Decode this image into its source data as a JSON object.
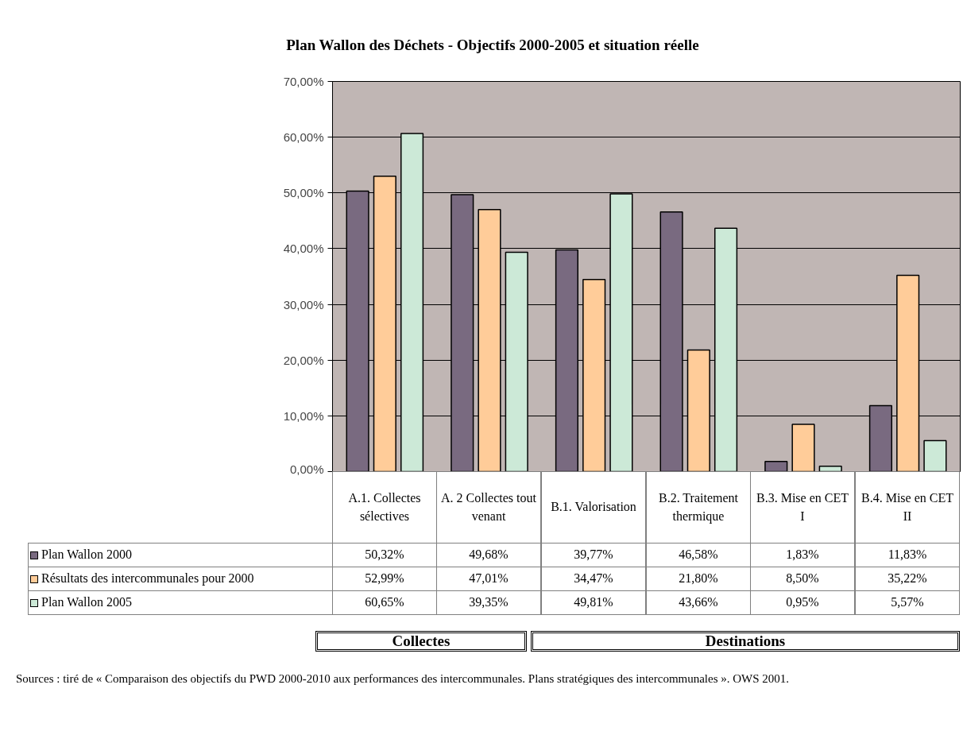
{
  "chart_data": {
    "type": "bar",
    "title": "Plan Wallon des Déchets - Objectifs 2000-2005 et situation réelle",
    "categories": [
      "A.1. Collectes sélectives",
      "A. 2 Collectes tout venant",
      "B.1. Valorisation",
      "B.2. Traitement thermique",
      "B.3. Mise en CET I",
      "B.4. Mise en CET II"
    ],
    "series": [
      {
        "name": "Plan Wallon 2000",
        "color": "#796a80",
        "values": [
          50.32,
          49.68,
          39.77,
          46.58,
          1.83,
          11.83
        ],
        "value_labels": [
          "50,32%",
          "49,68%",
          "39,77%",
          "46,58%",
          "1,83%",
          "11,83%"
        ]
      },
      {
        "name": "Résultats des intercommunales pour 2000",
        "color": "#ffcc99",
        "values": [
          52.99,
          47.01,
          34.47,
          21.8,
          8.5,
          35.22
        ],
        "value_labels": [
          "52,99%",
          "47,01%",
          "34,47%",
          "21,80%",
          "8,50%",
          "35,22%"
        ]
      },
      {
        "name": "Plan Wallon 2005",
        "color": "#cce9d7",
        "values": [
          60.65,
          39.35,
          49.81,
          43.66,
          0.95,
          5.57
        ],
        "value_labels": [
          "60,65%",
          "39,35%",
          "49,81%",
          "43,66%",
          "0,95%",
          "5,57%"
        ]
      }
    ],
    "ylim": [
      0,
      70
    ],
    "yticks": [
      {
        "value": 0,
        "label": "0,00%"
      },
      {
        "value": 10,
        "label": "10,00%"
      },
      {
        "value": 20,
        "label": "20,00%"
      },
      {
        "value": 30,
        "label": "30,00%"
      },
      {
        "value": 40,
        "label": "40,00%"
      },
      {
        "value": 50,
        "label": "50,00%"
      },
      {
        "value": 60,
        "label": "60,00%"
      },
      {
        "value": 70,
        "label": "70,00%"
      }
    ],
    "grid": "y",
    "legend": "bottom left",
    "annotations": [
      "Collectes",
      "Destinations",
      "Sources : tiré de « Comparaison des objectifs du PWD 2000-2010 aux performances des intercommunales. Plans stratégiques des intercommunales ». OWS 2001."
    ]
  }
}
